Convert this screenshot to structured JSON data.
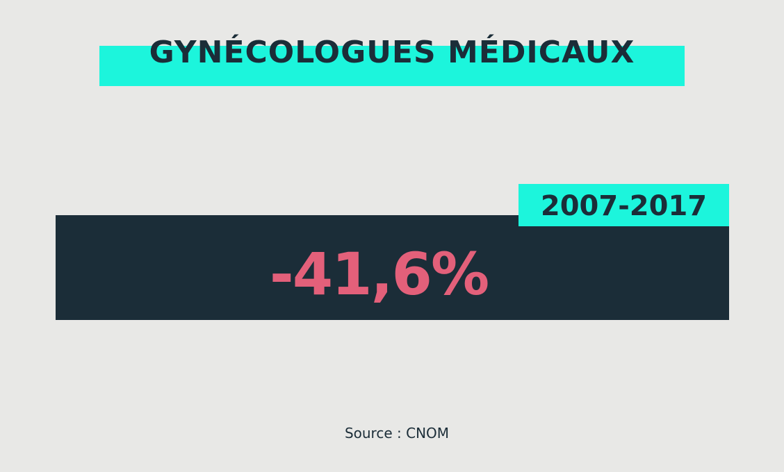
{
  "title": "GYNÉCOLOGUES MÉDICAUX",
  "period": "2007-2017",
  "figure": "-41,6%",
  "source": "Source : CNOM"
}
